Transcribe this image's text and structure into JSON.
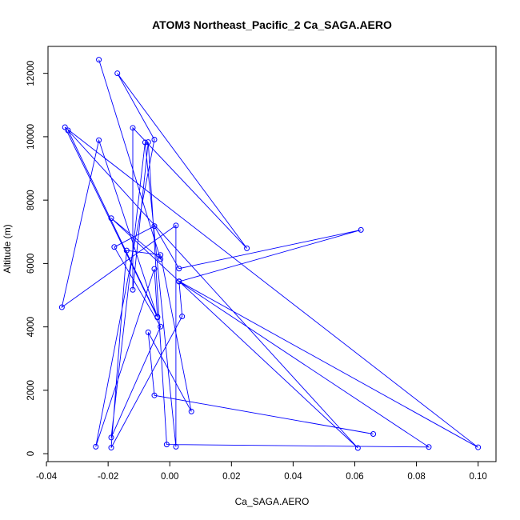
{
  "chart_data": {
    "type": "line",
    "title": "ATOM3 Northeast_Pacific_2 Ca_SAGA.AERO",
    "xlabel": "Ca_SAGA.AERO",
    "ylabel": "Altitude (m)",
    "xlim": [
      -0.0395,
      0.1058
    ],
    "ylim": [
      -250,
      12850
    ],
    "xticks": [
      -0.04,
      -0.02,
      0.0,
      0.02,
      0.04,
      0.06,
      0.08,
      0.1
    ],
    "xtick_labels": [
      "-0.04",
      "-0.02",
      "0.00",
      "0.02",
      "0.04",
      "0.06",
      "0.08",
      "0.10"
    ],
    "yticks": [
      0,
      2000,
      4000,
      6000,
      8000,
      10000,
      12000
    ],
    "ytick_labels": [
      "0",
      "2000",
      "4000",
      "6000",
      "8000",
      "10000",
      "12000"
    ],
    "grid": false,
    "series": [
      {
        "color": "#0000ff",
        "marker": "open-circle",
        "points": [
          [
            -0.023,
            12430
          ],
          [
            -0.003,
            6140
          ],
          [
            -0.019,
            7430
          ],
          [
            0.061,
            180
          ],
          [
            -0.033,
            10200
          ],
          [
            -0.004,
            4320
          ],
          [
            -0.005,
            5830
          ],
          [
            -0.024,
            220
          ],
          [
            -0.005,
            9910
          ],
          [
            -0.017,
            12000
          ],
          [
            0.025,
            6480
          ],
          [
            -0.012,
            10280
          ],
          [
            -0.012,
            5170
          ],
          [
            -0.007,
            9830
          ],
          [
            -0.001,
            290
          ],
          [
            0.084,
            210
          ],
          [
            0.003,
            5430
          ],
          [
            0.062,
            7060
          ],
          [
            0.003,
            5840
          ],
          [
            -0.005,
            7180
          ],
          [
            -0.018,
            6520
          ],
          [
            -0.003,
            4010
          ],
          [
            -0.019,
            510
          ],
          [
            -0.008,
            9820
          ],
          [
            0.002,
            220
          ],
          [
            0.002,
            7200
          ],
          [
            -0.035,
            4620
          ],
          [
            -0.023,
            9890
          ],
          [
            -0.004,
            4300
          ],
          [
            -0.034,
            10300
          ],
          [
            0.1,
            200
          ],
          [
            0.003,
            5440
          ],
          [
            0.004,
            4330
          ],
          [
            -0.019,
            190
          ],
          [
            -0.014,
            6410
          ],
          [
            -0.003,
            6270
          ],
          [
            0.007,
            1330
          ],
          [
            -0.007,
            3830
          ],
          [
            -0.005,
            1840
          ],
          [
            0.066,
            620
          ]
        ]
      }
    ]
  }
}
